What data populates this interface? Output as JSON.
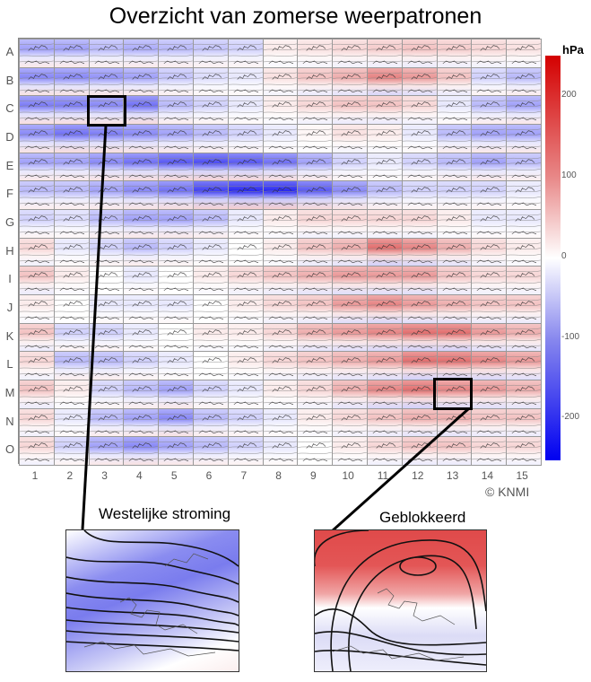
{
  "title": "Overzicht van zomerse weerpatronen",
  "rows": [
    "A",
    "B",
    "C",
    "D",
    "E",
    "F",
    "G",
    "H",
    "I",
    "J",
    "K",
    "L",
    "M",
    "N",
    "O"
  ],
  "columns": [
    "1",
    "2",
    "3",
    "4",
    "5",
    "6",
    "7",
    "8",
    "9",
    "10",
    "11",
    "12",
    "13",
    "14",
    "15"
  ],
  "colorbar": {
    "unit": "hPa",
    "ticks": [
      "200",
      "100",
      "0",
      "-100",
      "-200"
    ],
    "range": [
      -250,
      250
    ],
    "colors": {
      "high": "#d40000",
      "zero": "#ffffff",
      "low": "#0000f0"
    }
  },
  "anomaly_matrix_hpa": [
    [
      -80,
      -80,
      -60,
      -70,
      -60,
      -50,
      -40,
      20,
      30,
      40,
      50,
      60,
      50,
      40,
      30
    ],
    [
      -100,
      -100,
      -90,
      -80,
      -50,
      -30,
      -20,
      30,
      60,
      80,
      120,
      100,
      60,
      -40,
      -60
    ],
    [
      -110,
      -110,
      -100,
      -120,
      -60,
      -40,
      -20,
      20,
      40,
      60,
      60,
      40,
      -20,
      -60,
      -80
    ],
    [
      -100,
      -120,
      -110,
      -100,
      -80,
      -60,
      -40,
      -20,
      10,
      30,
      20,
      -20,
      -60,
      -80,
      -80
    ],
    [
      -80,
      -80,
      -100,
      -120,
      -140,
      -150,
      -140,
      -120,
      -80,
      -40,
      -20,
      -40,
      -60,
      -80,
      -60
    ],
    [
      -60,
      -60,
      -80,
      -100,
      -120,
      -160,
      -180,
      -180,
      -140,
      -100,
      -60,
      -40,
      -40,
      -40,
      -20
    ],
    [
      -40,
      -30,
      -60,
      -80,
      -80,
      -60,
      -20,
      20,
      40,
      40,
      40,
      40,
      20,
      -20,
      -20
    ],
    [
      40,
      -20,
      -40,
      -60,
      -40,
      -20,
      0,
      20,
      60,
      80,
      140,
      120,
      80,
      40,
      20
    ],
    [
      60,
      20,
      0,
      -20,
      0,
      20,
      40,
      60,
      80,
      100,
      100,
      100,
      60,
      40,
      40
    ],
    [
      20,
      0,
      -20,
      -20,
      -20,
      0,
      20,
      40,
      60,
      100,
      120,
      100,
      80,
      60,
      60
    ],
    [
      60,
      -40,
      -40,
      -20,
      0,
      20,
      20,
      40,
      80,
      100,
      120,
      140,
      140,
      100,
      80
    ],
    [
      40,
      -60,
      -60,
      -40,
      -20,
      0,
      20,
      40,
      60,
      80,
      100,
      140,
      140,
      120,
      100
    ],
    [
      60,
      20,
      -40,
      -60,
      -80,
      -40,
      -20,
      20,
      40,
      80,
      120,
      140,
      120,
      100,
      80
    ],
    [
      40,
      -20,
      -60,
      -80,
      -100,
      -60,
      -40,
      -20,
      20,
      40,
      60,
      80,
      80,
      60,
      60
    ],
    [
      40,
      -40,
      -80,
      -100,
      -80,
      -60,
      -40,
      -20,
      0,
      20,
      40,
      60,
      60,
      40,
      40
    ]
  ],
  "highlights": [
    {
      "label": "Westelijke stroming",
      "row": "C",
      "column": "3"
    },
    {
      "label": "Geblokkeerd",
      "row": "M",
      "column": "13"
    }
  ],
  "copyright": "© KNMI"
}
